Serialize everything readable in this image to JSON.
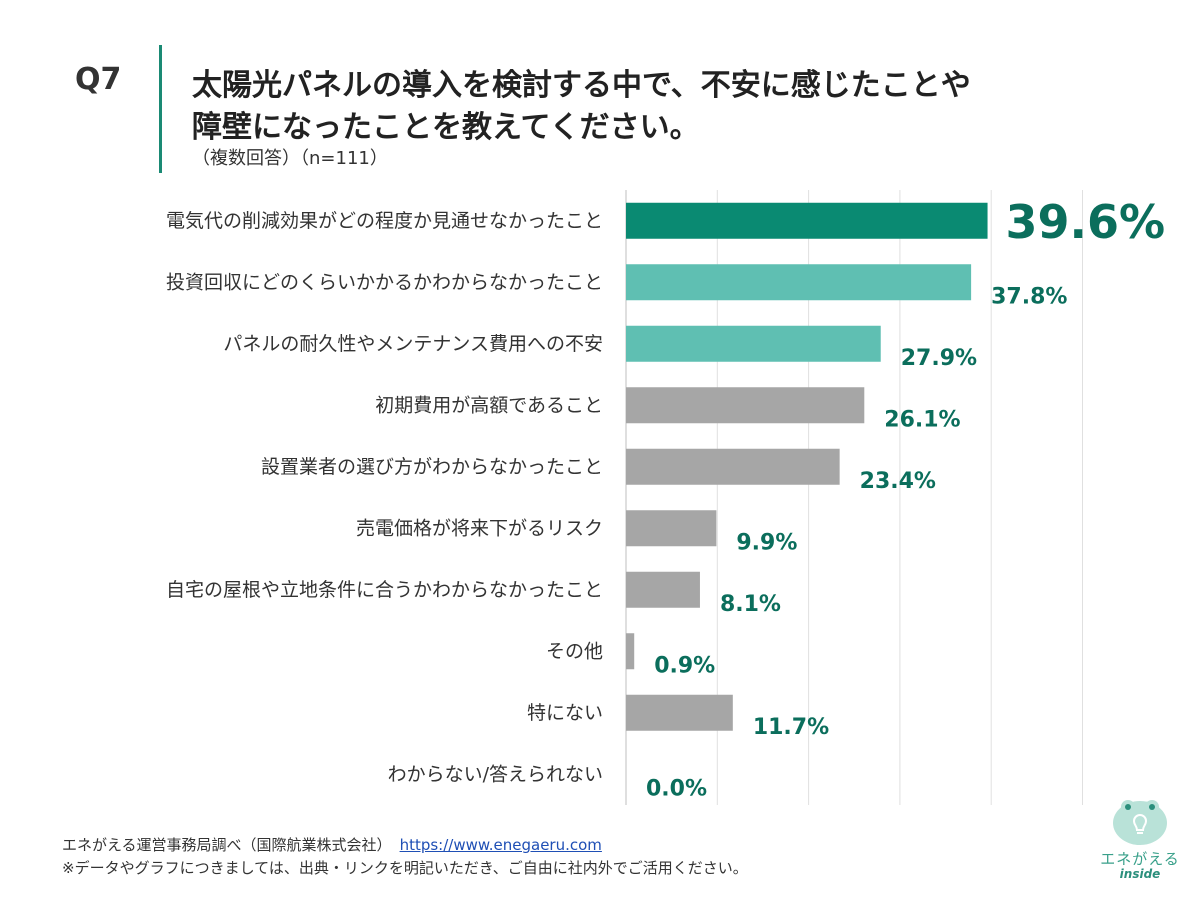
{
  "header": {
    "question_no": "Q7",
    "title_line1": "太陽光パネルの導入を検討する中で、不安に感じたことや",
    "title_line2": "障壁になったことを教えてください。",
    "subtitle": "（複数回答）（n=111）"
  },
  "chart_data": {
    "type": "bar",
    "orientation": "horizontal",
    "categories": [
      "電気代の削減効果がどの程度か見通せなかったこと",
      "投資回収にどのくらいかかるかわからなかったこと",
      "パネルの耐久性やメンテナンス費用への不安",
      "初期費用が高額であること",
      "設置業者の選び方がわからなかったこと",
      "売電価格が将来下がるリスク",
      "自宅の屋根や立地条件に合うかわからなかったこと",
      "その他",
      "特にない",
      "わからない/答えられない"
    ],
    "values": [
      39.6,
      37.8,
      27.9,
      26.1,
      23.4,
      9.9,
      8.1,
      0.9,
      11.7,
      0.0
    ],
    "value_labels": [
      "39.6%",
      "37.8%",
      "27.9%",
      "26.1%",
      "23.4%",
      "9.9%",
      "8.1%",
      "0.9%",
      "11.7%",
      "0.0%"
    ],
    "bar_colors": [
      "#0a8a72",
      "#5fbfb2",
      "#5fbfb2",
      "#a6a6a6",
      "#a6a6a6",
      "#a6a6a6",
      "#a6a6a6",
      "#a6a6a6",
      "#a6a6a6",
      "#a6a6a6"
    ],
    "label_color": "#0b6e5c",
    "xlim": [
      0,
      50
    ],
    "grid": true,
    "highlight_index": 0
  },
  "footer": {
    "source": "エネがえる運営事務局調べ（国際航業株式会社）",
    "link": "https://www.enegaeru.com",
    "note": "※データやグラフにつきましては、出典・リンクを明記いただき、ご自由に社内外でご活用ください。"
  },
  "logo": {
    "text": "エネがえる",
    "sub": "inside",
    "icon": "frog-lightbulb-icon"
  }
}
